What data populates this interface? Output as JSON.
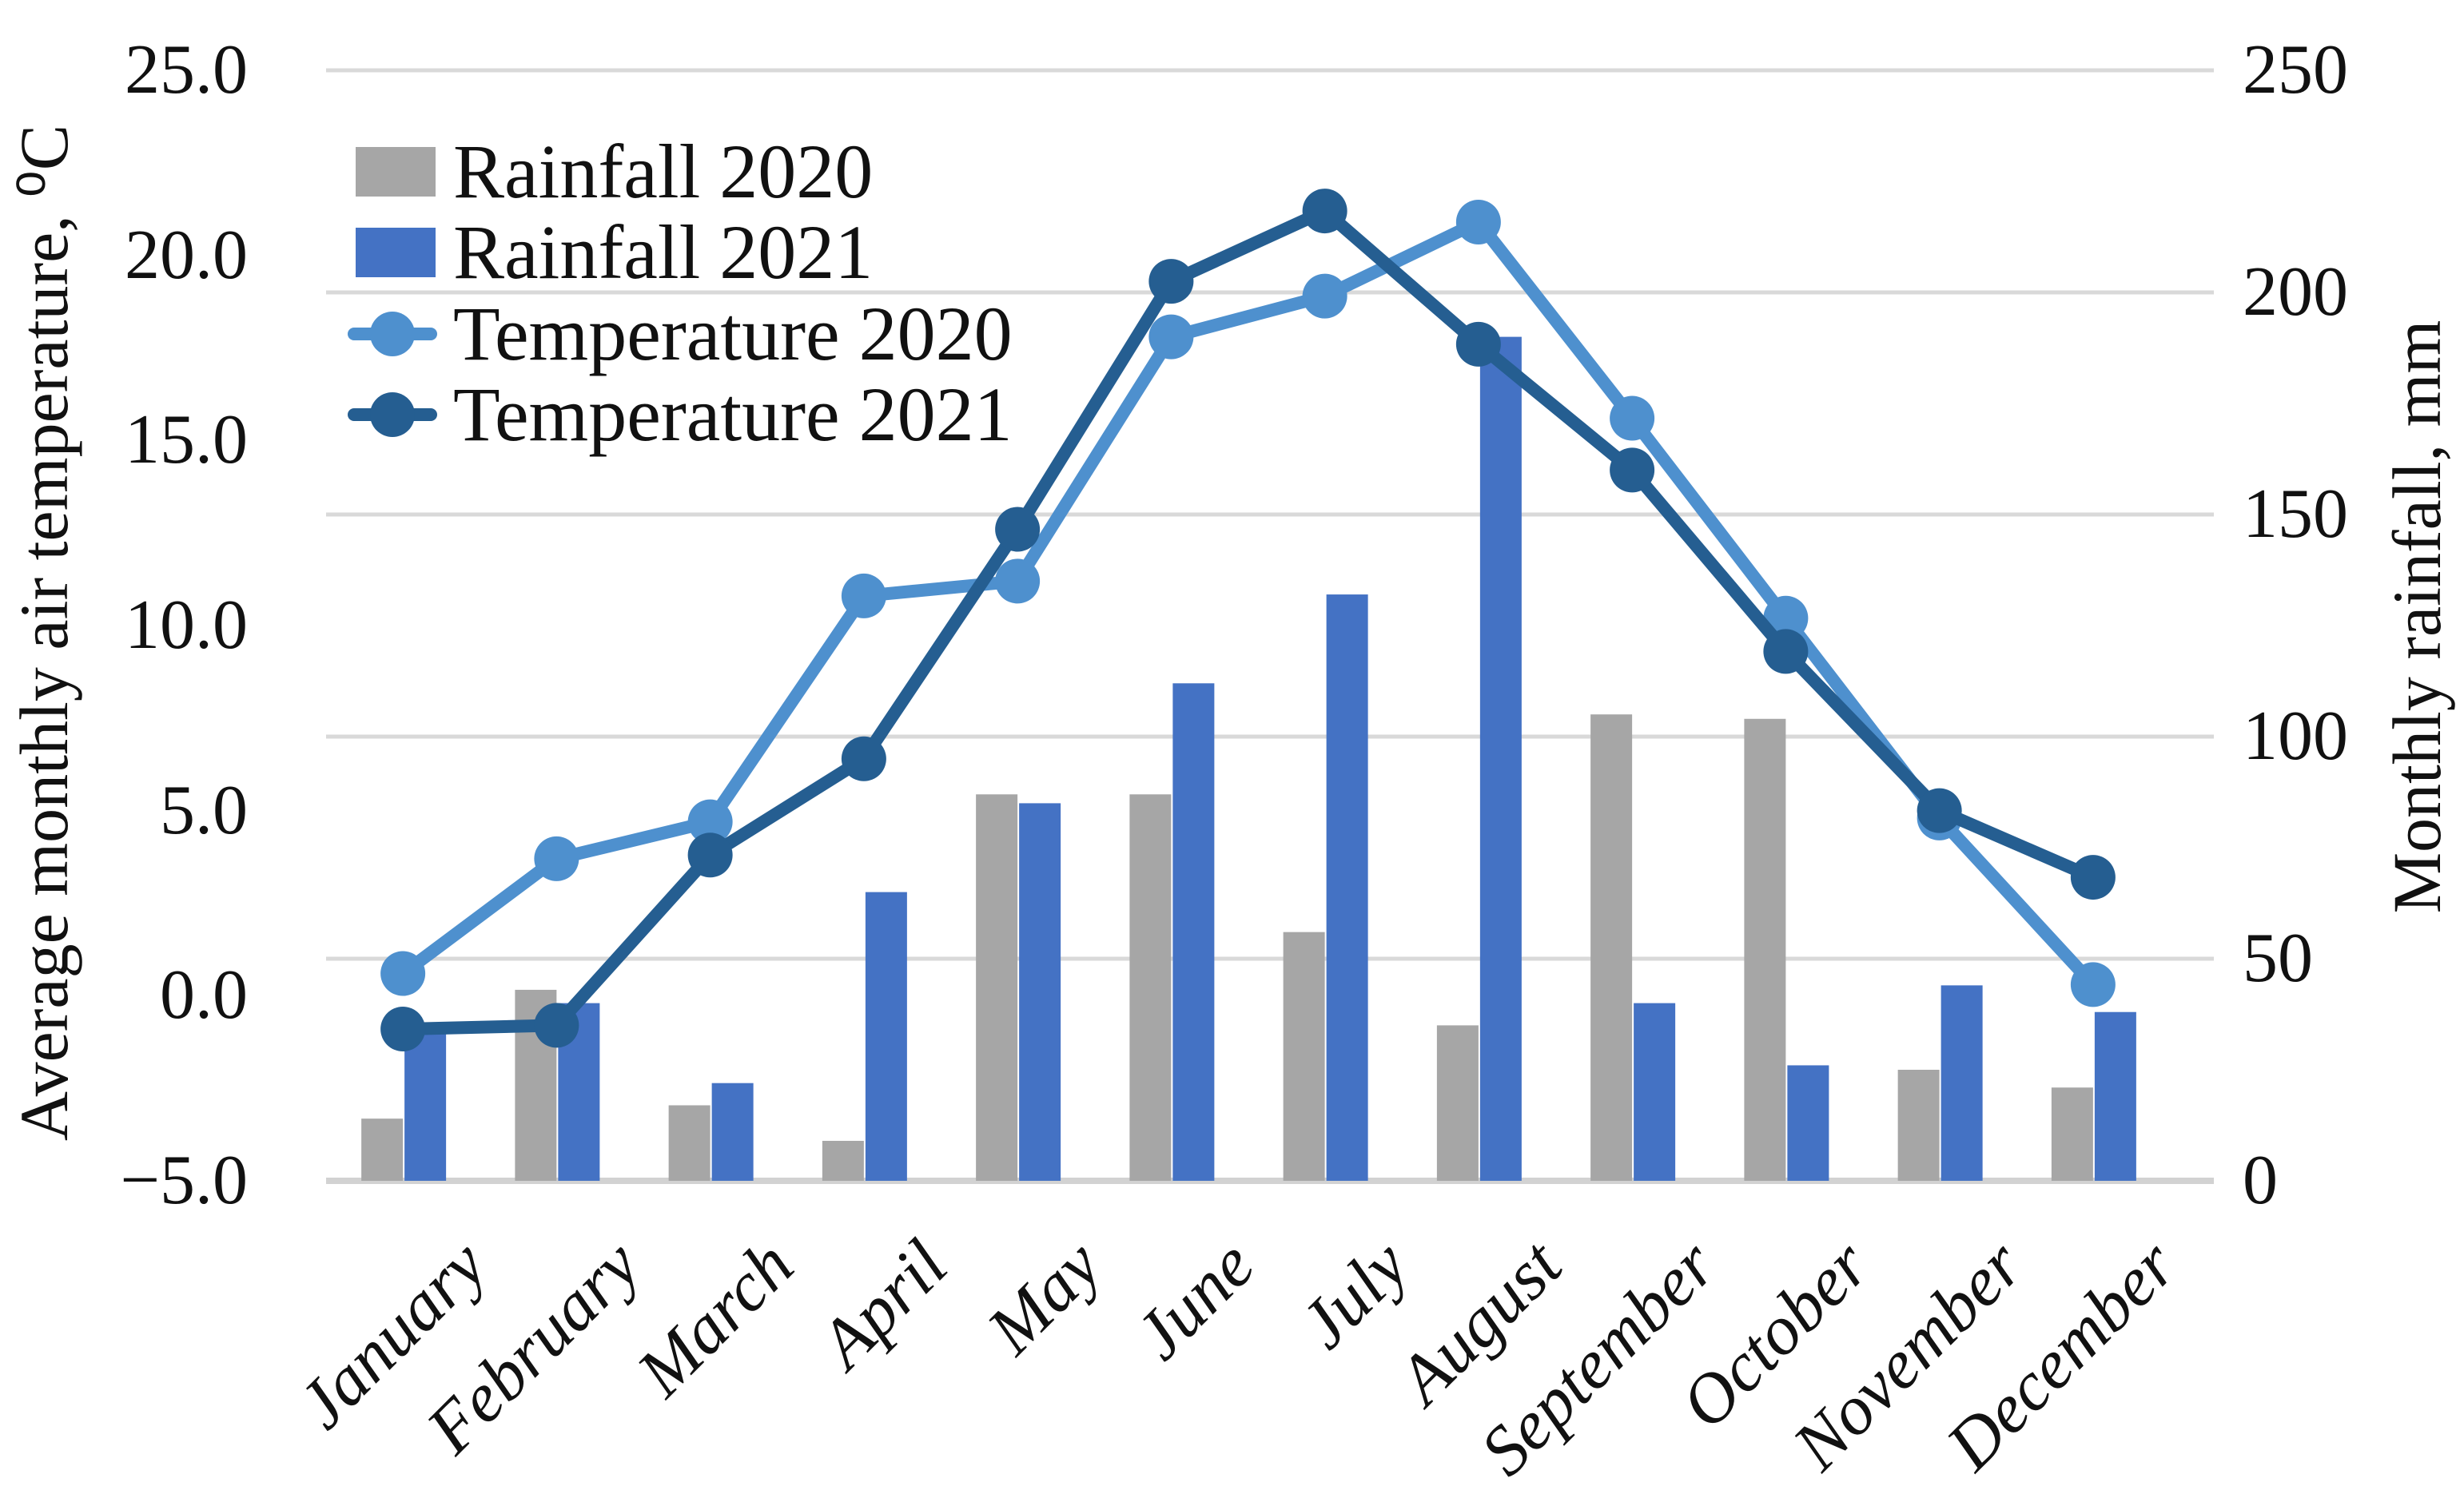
{
  "page": {
    "background": "#ffffff"
  },
  "chart_data": {
    "type": "combo-bar-line",
    "categories": [
      "January",
      "February",
      "March",
      "April",
      "May",
      "June",
      "July",
      "August",
      "September",
      "October",
      "November",
      "December"
    ],
    "series": [
      {
        "name": "Rainfall 2020",
        "type": "bar",
        "axis": "right",
        "color": "#A6A6A6",
        "values": [
          14,
          43,
          17,
          9,
          87,
          87,
          56,
          35,
          105,
          104,
          25,
          21
        ]
      },
      {
        "name": "Rainfall 2021",
        "type": "bar",
        "axis": "right",
        "color": "#4472C4",
        "values": [
          35,
          40,
          22,
          65,
          85,
          112,
          132,
          190,
          40,
          26,
          44,
          38
        ]
      },
      {
        "name": "Temperature 2020",
        "type": "line",
        "axis": "left",
        "color": "#4E90CE",
        "values": [
          0.6,
          3.7,
          4.7,
          10.8,
          11.2,
          17.8,
          18.9,
          20.9,
          15.6,
          10.2,
          4.8,
          0.3
        ]
      },
      {
        "name": "Temperature 2021",
        "type": "line",
        "axis": "left",
        "color": "#255E91",
        "values": [
          -0.9,
          -0.8,
          3.8,
          6.4,
          12.6,
          19.3,
          21.2,
          17.6,
          14.2,
          9.3,
          5.0,
          3.2
        ]
      }
    ],
    "left_axis": {
      "title": "Average monthly air temperature, ⁰C",
      "min": -5,
      "max": 25,
      "ticks": [
        "25.0",
        "20.0",
        "15.0",
        "10.0",
        "5.0",
        "0.0",
        "−5.0"
      ]
    },
    "right_axis": {
      "title": "Monthly rainfall, mm",
      "min": 0,
      "max": 250,
      "ticks": [
        "250",
        "200",
        "150",
        "100",
        "50",
        "0"
      ]
    },
    "grid": {
      "color": "#D9D9D9",
      "baseline_color": "#D2D2D2",
      "on": true
    },
    "legend": {
      "position": "top-left-inside"
    }
  }
}
